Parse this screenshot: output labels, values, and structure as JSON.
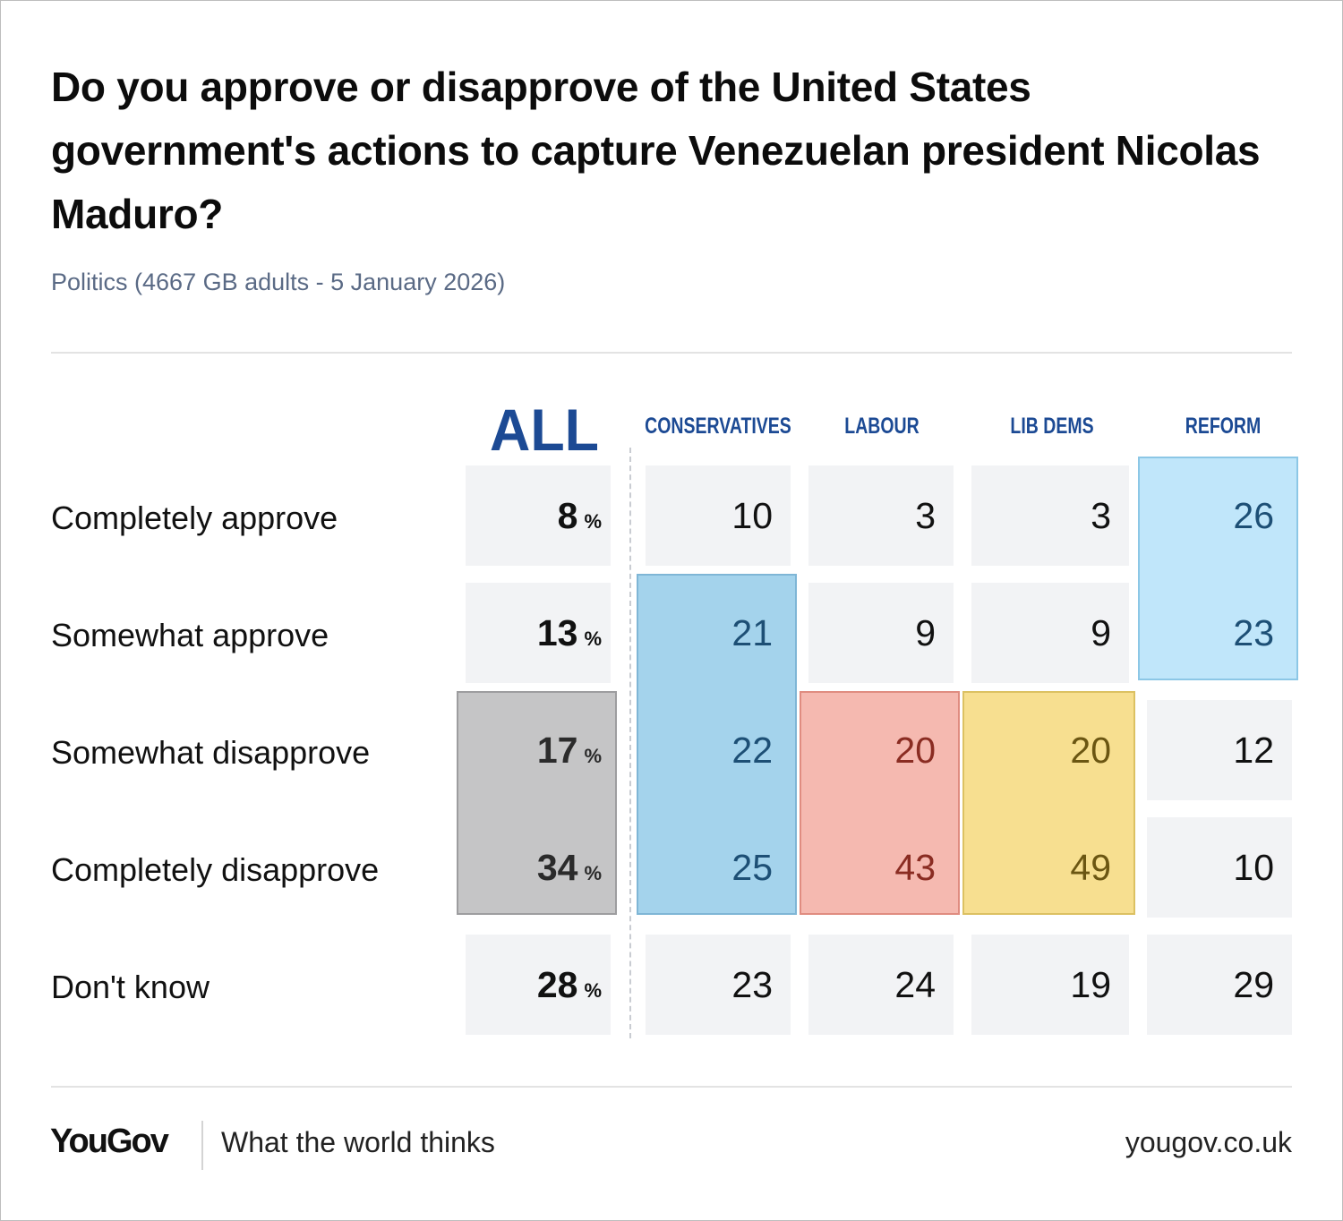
{
  "title": "Do you approve or disapprove of the United States government's actions to capture Venezuelan president Nicolas Maduro?",
  "subtitle": "Politics (4667 GB adults - 5 January 2026)",
  "chart_data": {
    "type": "table",
    "columns": [
      "ALL",
      "CONSERVATIVES",
      "LABOUR",
      "LIB DEMS",
      "REFORM"
    ],
    "rows": [
      "Completely approve",
      "Somewhat approve",
      "Somewhat disapprove",
      "Completely disapprove",
      "Don't know"
    ],
    "series": [
      {
        "name": "ALL",
        "values": [
          8,
          13,
          17,
          34,
          28
        ],
        "unit": "%"
      },
      {
        "name": "CONSERVATIVES",
        "values": [
          10,
          21,
          22,
          25,
          23
        ]
      },
      {
        "name": "LABOUR",
        "values": [
          3,
          9,
          20,
          43,
          24
        ]
      },
      {
        "name": "LIB DEMS",
        "values": [
          3,
          9,
          20,
          49,
          19
        ]
      },
      {
        "name": "REFORM",
        "values": [
          26,
          23,
          12,
          10,
          29
        ]
      }
    ],
    "pct_symbol": "%",
    "highlight_colors": {
      "ALL": "#969698",
      "CONSERVATIVES": "#5aafdc",
      "LABOUR": "#ec8070",
      "LIB DEMS": "#f2ce54",
      "REFORM": "#8cd2f5"
    }
  },
  "footer": {
    "logo": "YouGov",
    "tagline": "What the world thinks",
    "url": "yougov.co.uk"
  }
}
